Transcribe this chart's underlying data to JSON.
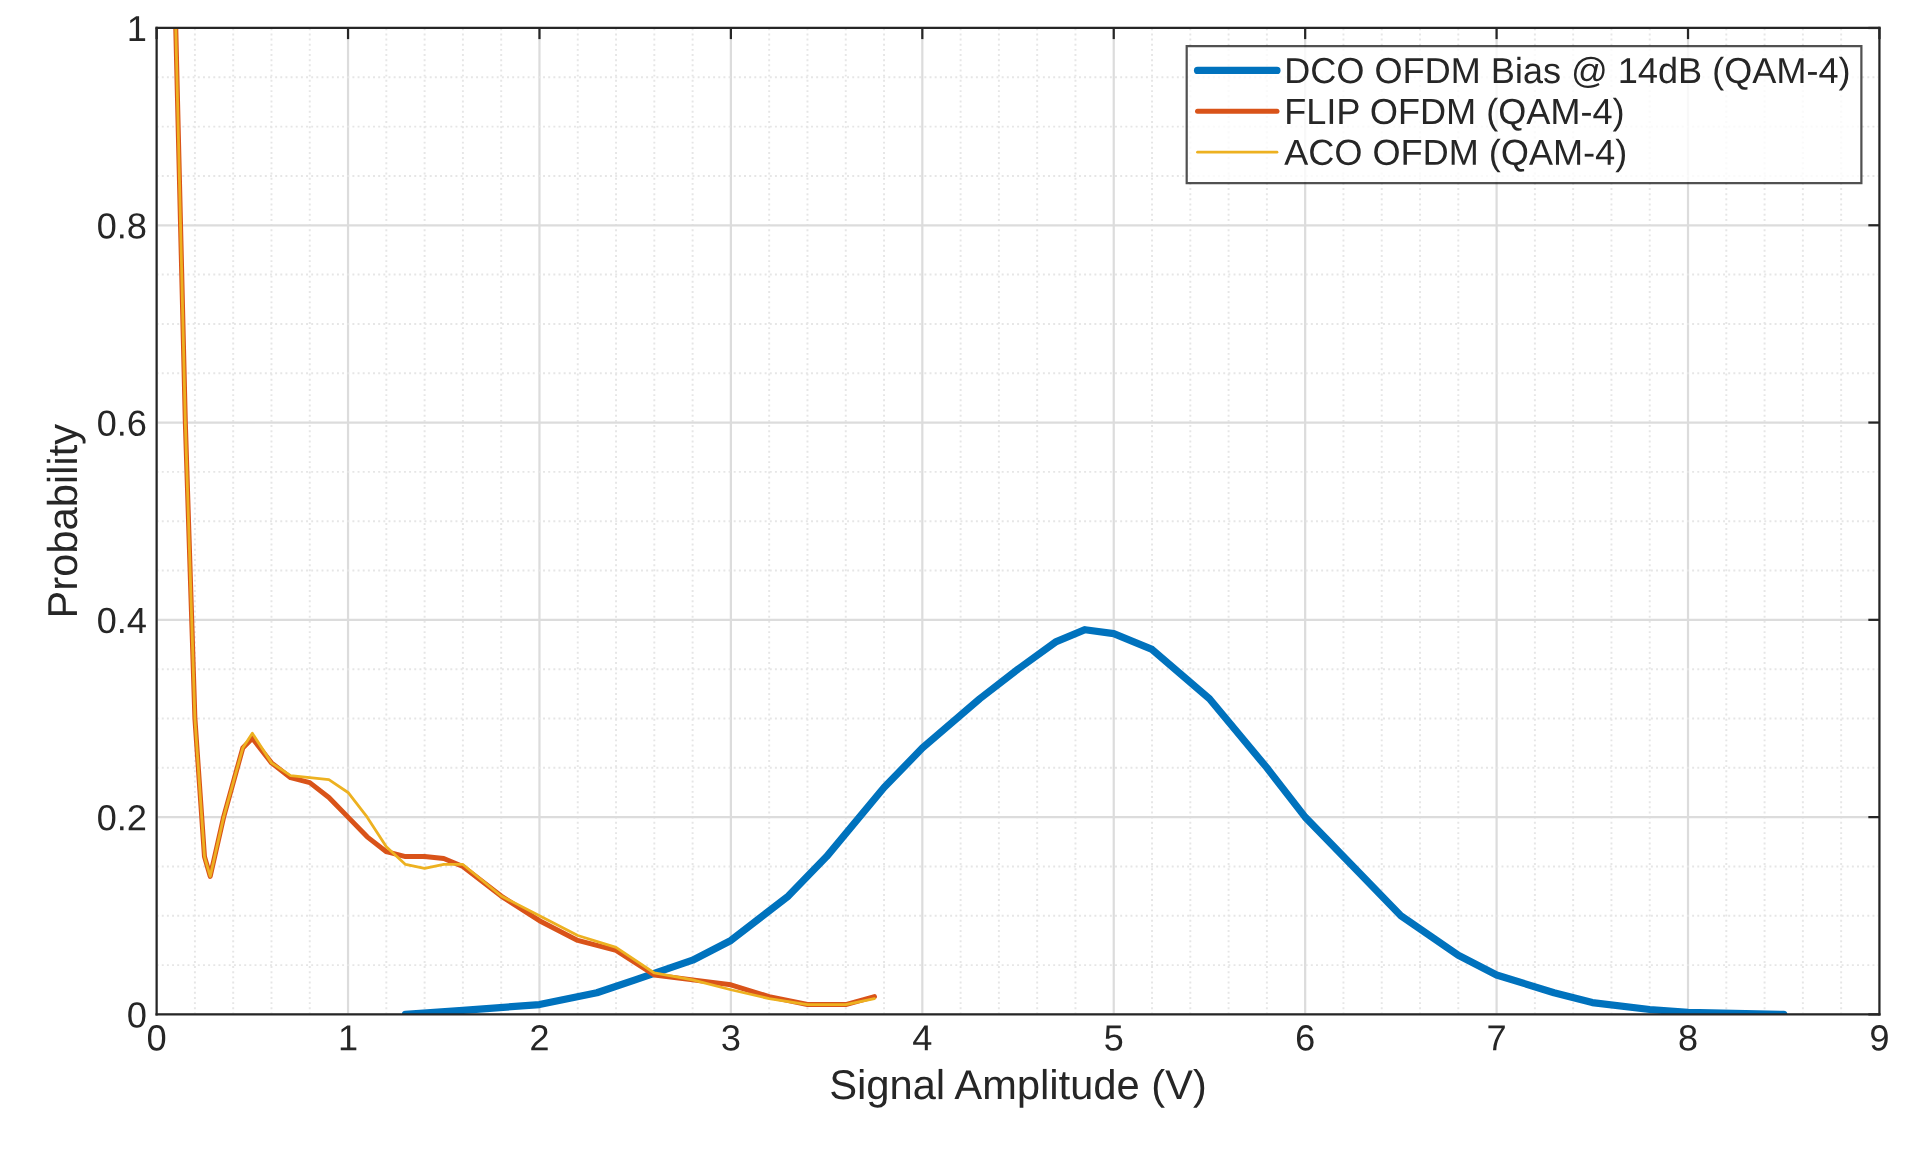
{
  "chart_data": {
    "type": "line",
    "xlabel": "Signal Amplitude (V)",
    "ylabel": "Probability",
    "xlim": [
      0,
      9
    ],
    "ylim": [
      0,
      1
    ],
    "xticks": [
      0,
      1,
      2,
      3,
      4,
      5,
      6,
      7,
      8,
      9
    ],
    "yticks": [
      0,
      0.2,
      0.4,
      0.6,
      0.8,
      1
    ],
    "grid": true,
    "legend": "top right",
    "line_style": "solid",
    "marker": "none",
    "series": [
      {
        "name": "DCO OFDM Bias @ 14dB (QAM-4)",
        "color": "#0072bd",
        "x": [
          1.3,
          1.6,
          2.0,
          2.3,
          2.5,
          2.8,
          3.0,
          3.3,
          3.5,
          3.8,
          4.0,
          4.3,
          4.5,
          4.7,
          4.85,
          5.0,
          5.2,
          5.5,
          5.8,
          6.0,
          6.3,
          6.5,
          6.8,
          7.0,
          7.3,
          7.5,
          7.8,
          8.0,
          8.5
        ],
        "values": [
          0,
          0.004,
          0.01,
          0.022,
          0.035,
          0.055,
          0.075,
          0.12,
          0.16,
          0.23,
          0.27,
          0.32,
          0.35,
          0.378,
          0.39,
          0.386,
          0.37,
          0.32,
          0.25,
          0.2,
          0.14,
          0.1,
          0.06,
          0.04,
          0.022,
          0.012,
          0.005,
          0.002,
          0
        ]
      },
      {
        "name": "FLIP OFDM (QAM-4)",
        "color": "#d95319",
        "x": [
          0.1,
          0.15,
          0.2,
          0.25,
          0.28,
          0.35,
          0.45,
          0.5,
          0.6,
          0.7,
          0.8,
          0.9,
          1.0,
          1.1,
          1.2,
          1.3,
          1.4,
          1.5,
          1.6,
          1.8,
          2.0,
          2.2,
          2.4,
          2.6,
          2.8,
          3.0,
          3.2,
          3.4,
          3.6,
          3.75
        ],
        "values": [
          1,
          0.6,
          0.3,
          0.16,
          0.14,
          0.2,
          0.27,
          0.28,
          0.255,
          0.24,
          0.235,
          0.22,
          0.2,
          0.18,
          0.165,
          0.16,
          0.16,
          0.158,
          0.15,
          0.12,
          0.095,
          0.075,
          0.065,
          0.04,
          0.035,
          0.03,
          0.018,
          0.01,
          0.01,
          0.018
        ]
      },
      {
        "name": "ACO OFDM (QAM-4)",
        "color": "#edb120",
        "x": [
          0.1,
          0.15,
          0.2,
          0.25,
          0.28,
          0.35,
          0.45,
          0.5,
          0.6,
          0.7,
          0.8,
          0.9,
          1.0,
          1.1,
          1.2,
          1.3,
          1.4,
          1.5,
          1.6,
          1.8,
          2.0,
          2.2,
          2.4,
          2.6,
          2.8,
          3.0,
          3.2,
          3.4,
          3.6,
          3.75
        ],
        "values": [
          1,
          0.6,
          0.3,
          0.16,
          0.14,
          0.2,
          0.27,
          0.285,
          0.255,
          0.242,
          0.24,
          0.238,
          0.225,
          0.2,
          0.17,
          0.152,
          0.148,
          0.152,
          0.152,
          0.12,
          0.1,
          0.08,
          0.068,
          0.042,
          0.035,
          0.025,
          0.016,
          0.01,
          0.01,
          0.016
        ]
      }
    ]
  }
}
